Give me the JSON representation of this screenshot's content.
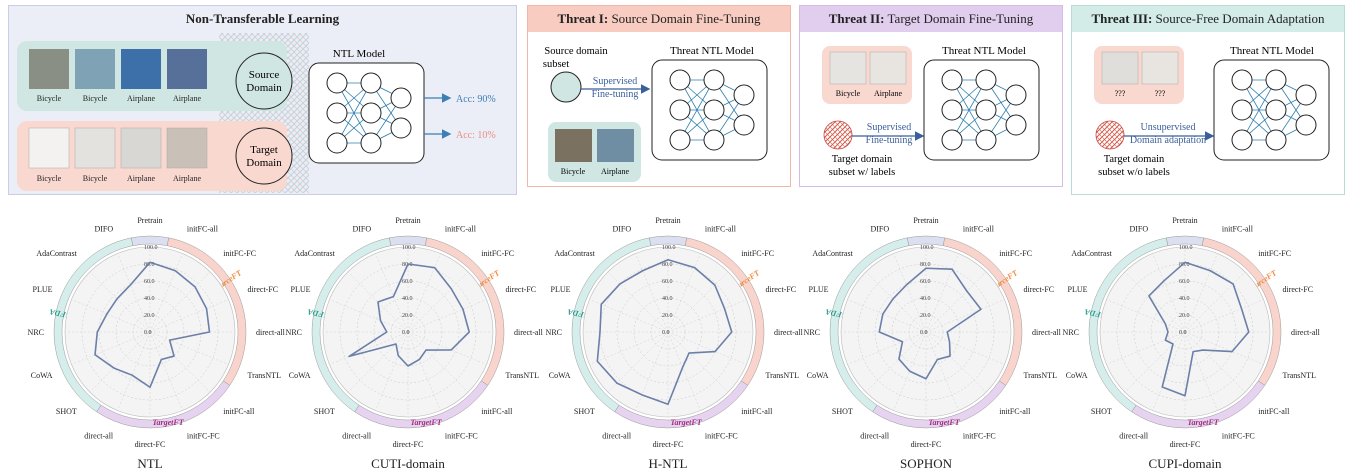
{
  "panels": {
    "ntl": {
      "title": "Non-Transferable Learning",
      "model_label": "NTL Model",
      "source_domain": [
        "Source",
        "Domain"
      ],
      "target_domain": [
        "Target",
        "Domain"
      ],
      "source_images": [
        "Bicycle",
        "Bicycle",
        "Airplane",
        "Airplane"
      ],
      "target_images": [
        "Bicycle",
        "Bicycle",
        "Airplane",
        "Airplane"
      ],
      "acc_source": "Acc: 90%",
      "acc_target": "Acc: 10%"
    },
    "threat1": {
      "title_bold": "Threat I:",
      "title_rest": " Source Domain Fine-Tuning",
      "subset_label": [
        "Source domain",
        "subset"
      ],
      "arrow_label": [
        "Supervised",
        "Fine-tuning"
      ],
      "model_label": "Threat NTL Model",
      "images": [
        "Bicycle",
        "Airplane"
      ]
    },
    "threat2": {
      "title_bold": "Threat II:",
      "title_rest": " Target Domain Fine-Tuning",
      "images": [
        "Bicycle",
        "Airplane"
      ],
      "arrow_label": [
        "Supervised",
        "Fine-tuning"
      ],
      "model_label": "Threat NTL Model",
      "subset_label": [
        "Target domain",
        "subset w/ labels"
      ]
    },
    "threat3": {
      "title_bold": "Threat III:",
      "title_rest": " Source-Free Domain Adaptation",
      "images": [
        "???",
        "???"
      ],
      "arrow_label": [
        "Unsupervised",
        "Domain adaptation"
      ],
      "model_label": "Threat NTL Model",
      "subset_label": [
        "Target domain",
        "subset w/o labels"
      ]
    }
  },
  "colors": {
    "ntl_bg": "#e8eaf4",
    "ntl_border": "#c9cde6",
    "threat1_bg": "#f6c9bd",
    "threat2_bg": "#e2cdee",
    "threat3_bg": "#d3ece8",
    "source_fill": "#cfe6e3",
    "target_fill": "#f9d8d0",
    "accent_blue": "#3b7fb6",
    "acc_target_color": "#e88f7e",
    "radar_line": "#6b7fa8",
    "ring_sourceft": "#f9d4cc",
    "ring_targetft": "#e6d3ef",
    "ring_sfda": "#d6eeeb",
    "ring_pretrain": "#dcdff0",
    "label_sourceft": "#ef8a3c",
    "label_targetft": "#a0307f",
    "label_sfda": "#2e9c8f"
  },
  "chart_data": [
    {
      "type": "radar",
      "title": "NTL",
      "axes": [
        "Pretrain",
        "initFC-all",
        "initFC-FC",
        "direct-FC",
        "direct-all",
        "TransNTL",
        "initFC-all",
        "initFC-FC",
        "direct-FC",
        "direct-all",
        "SHOT",
        "CoWA",
        "NRC",
        "PLUE",
        "AdaContrast",
        "DIFO"
      ],
      "ticks": [
        "0.0",
        "20.0",
        "40.0",
        "60.0",
        "80.0",
        "100.0"
      ],
      "rlim": [
        0,
        100
      ],
      "groups": [
        "SourceFT",
        "TargetFT",
        "SFDA"
      ],
      "values": [
        82,
        78,
        75,
        72,
        70,
        25,
        40,
        35,
        65,
        55,
        60,
        70,
        62,
        55,
        55,
        60
      ]
    },
    {
      "type": "radar",
      "title": "CUTI-domain",
      "axes": [
        "Pretrain",
        "initFC-all",
        "initFC-FC",
        "direct-FC",
        "direct-all",
        "TransNTL",
        "initFC-all",
        "initFC-FC",
        "direct-FC",
        "direct-all",
        "SHOT",
        "CoWA",
        "NRC",
        "PLUE",
        "AdaContrast",
        "DIFO"
      ],
      "ticks": [
        "0.0",
        "20.0",
        "40.0",
        "60.0",
        "80.0",
        "100.0"
      ],
      "rlim": [
        0,
        100
      ],
      "groups": [
        "SourceFT",
        "TargetFT",
        "SFDA"
      ],
      "values": [
        80,
        82,
        72,
        70,
        72,
        55,
        30,
        35,
        40,
        30,
        20,
        75,
        25,
        35,
        50,
        45
      ]
    },
    {
      "type": "radar",
      "title": "H-NTL",
      "axes": [
        "Pretrain",
        "initFC-all",
        "initFC-FC",
        "direct-FC",
        "direct-all",
        "TransNTL",
        "initFC-all",
        "initFC-FC",
        "direct-FC",
        "direct-all",
        "SHOT",
        "CoWA",
        "NRC",
        "PLUE",
        "AdaContrast",
        "DIFO"
      ],
      "ticks": [
        "0.0",
        "20.0",
        "40.0",
        "60.0",
        "80.0",
        "100.0"
      ],
      "rlim": [
        0,
        100
      ],
      "groups": [
        "SourceFT",
        "TargetFT",
        "SFDA"
      ],
      "values": [
        85,
        82,
        78,
        72,
        75,
        60,
        35,
        45,
        85,
        80,
        85,
        90,
        80,
        85,
        80,
        78
      ]
    },
    {
      "type": "radar",
      "title": "SOPHON",
      "axes": [
        "Pretrain",
        "initFC-all",
        "initFC-FC",
        "direct-FC",
        "direct-all",
        "TransNTL",
        "initFC-all",
        "initFC-FC",
        "direct-FC",
        "direct-all",
        "SHOT",
        "CoWA",
        "NRC",
        "PLUE",
        "AdaContrast",
        "DIFO"
      ],
      "ticks": [
        "0.0",
        "20.0",
        "40.0",
        "60.0",
        "80.0",
        "100.0"
      ],
      "rlim": [
        0,
        100
      ],
      "groups": [
        "SourceFT",
        "TargetFT",
        "SFDA"
      ],
      "values": [
        75,
        80,
        68,
        70,
        25,
        30,
        40,
        35,
        55,
        50,
        45,
        30,
        55,
        55,
        55,
        60
      ]
    },
    {
      "type": "radar",
      "title": "CUPI-domain",
      "axes": [
        "Pretrain",
        "initFC-all",
        "initFC-FC",
        "direct-FC",
        "direct-all",
        "TransNTL",
        "initFC-all",
        "initFC-FC",
        "direct-FC",
        "direct-all",
        "SHOT",
        "CoWA",
        "NRC",
        "PLUE",
        "AdaContrast",
        "DIFO"
      ],
      "ticks": [
        "0.0",
        "20.0",
        "40.0",
        "60.0",
        "80.0",
        "100.0"
      ],
      "rlim": [
        0,
        100
      ],
      "groups": [
        "SourceFT",
        "TargetFT",
        "SFDA"
      ],
      "values": [
        82,
        78,
        80,
        72,
        75,
        60,
        30,
        25,
        75,
        70,
        20,
        25,
        20,
        25,
        60,
        65
      ]
    }
  ]
}
